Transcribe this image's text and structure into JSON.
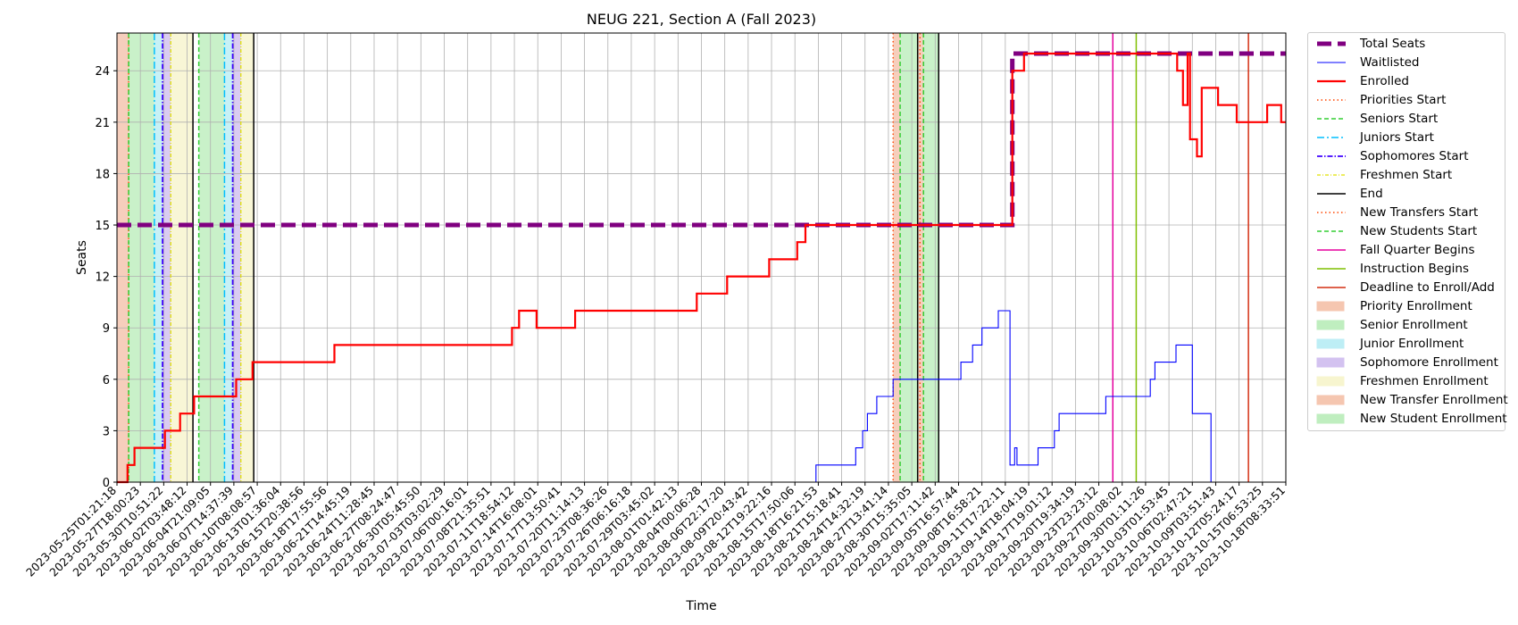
{
  "chart_data": {
    "type": "line",
    "title": "NEUG 221, Section A (Fall 2023)",
    "xlabel": "Time",
    "ylabel": "Seats",
    "ylim": [
      0,
      26.2
    ],
    "yticks": [
      0,
      3,
      6,
      9,
      12,
      15,
      18,
      21,
      24
    ],
    "grid": true,
    "legend_position": "outside-right",
    "x_tick_labels": [
      "2023-05-25T01:21:18",
      "2023-05-27T18:00:23",
      "2023-05-30T10:51:22",
      "2023-06-02T03:48:12",
      "2023-06-04T21:09:05",
      "2023-06-07T14:37:39",
      "2023-06-10T08:08:57",
      "2023-06-13T01:36:04",
      "2023-06-15T20:38:56",
      "2023-06-18T17:55:56",
      "2023-06-21T14:45:19",
      "2023-06-24T11:28:45",
      "2023-06-27T08:24:47",
      "2023-06-30T05:45:50",
      "2023-07-03T03:02:29",
      "2023-07-06T00:16:01",
      "2023-07-08T21:35:51",
      "2023-07-11T18:54:12",
      "2023-07-14T16:08:01",
      "2023-07-17T13:50:41",
      "2023-07-20T11:14:13",
      "2023-07-23T08:36:26",
      "2023-07-26T06:16:18",
      "2023-07-29T03:45:02",
      "2023-08-01T01:42:13",
      "2023-08-04T00:06:28",
      "2023-08-06T22:17:20",
      "2023-08-09T20:43:42",
      "2023-08-12T19:22:16",
      "2023-08-15T17:50:06",
      "2023-08-18T16:21:53",
      "2023-08-21T15:18:41",
      "2023-08-24T14:32:19",
      "2023-08-27T13:41:14",
      "2023-08-30T15:35:05",
      "2023-09-02T17:11:42",
      "2023-09-05T16:57:44",
      "2023-09-08T16:58:21",
      "2023-09-11T17:22:11",
      "2023-09-14T18:04:19",
      "2023-09-17T19:01:12",
      "2023-09-20T19:34:19",
      "2023-09-23T23:23:12",
      "2023-09-27T00:08:02",
      "2023-09-30T01:11:26",
      "2023-10-03T01:53:45",
      "2023-10-06T02:47:21",
      "2023-10-09T03:51:43",
      "2023-10-12T05:24:17",
      "2023-10-15T06:53:25",
      "2023-10-18T08:33:51"
    ],
    "series": [
      {
        "name": "Total Seats",
        "color": "#800080",
        "style": "dashed-thick",
        "x": [
          0,
          38.3,
          38.3,
          50
        ],
        "y": [
          15,
          15,
          25,
          25
        ]
      },
      {
        "name": "Enrolled",
        "color": "#ff0000",
        "style": "step",
        "x": [
          0,
          0.45,
          0.75,
          2.05,
          2.7,
          3.3,
          4.0,
          5.1,
          5.8,
          9.3,
          16.9,
          17.2,
          17.95,
          19.6,
          24.8,
          26.1,
          27.9,
          29.1,
          29.45,
          36.0,
          38.3,
          38.5,
          38.8,
          41.0,
          42.5,
          44.0,
          45.3,
          45.35,
          45.6,
          45.8,
          45.9,
          46.2,
          46.4,
          47.1,
          47.9,
          48.5,
          49.2,
          49.8,
          50
        ],
        "y": [
          0,
          1,
          2,
          3,
          4,
          5,
          5,
          6,
          7,
          8,
          9,
          10,
          9,
          10,
          11,
          12,
          13,
          14,
          15,
          15,
          24,
          24,
          25,
          25,
          25,
          25,
          25,
          24,
          22,
          25,
          20,
          19,
          23,
          22,
          21,
          21,
          22,
          21,
          21
        ]
      },
      {
        "name": "Waitlisted",
        "color": "#0000ff",
        "style": "step",
        "x": [
          0,
          29.9,
          31.6,
          31.9,
          32.1,
          32.5,
          33.2,
          33.5,
          34.3,
          35.0,
          35.25,
          35.9,
          36.1,
          36.6,
          37.0,
          37.7,
          38.0,
          38.2,
          38.4,
          38.5,
          39.1,
          39.4,
          40.1,
          40.3,
          41.1,
          41.5,
          42.3,
          44.2,
          44.4,
          44.7,
          45.3,
          46.0,
          46.8,
          50
        ],
        "y": [
          0,
          1,
          2,
          3,
          4,
          5,
          6,
          6,
          6,
          6,
          6,
          6,
          7,
          8,
          9,
          10,
          10,
          1,
          2,
          1,
          1,
          2,
          3,
          4,
          4,
          4,
          5,
          6,
          7,
          7,
          8,
          4,
          0,
          0
        ]
      }
    ],
    "markers": [
      {
        "name": "Priorities Start",
        "color": "#ff4500",
        "style": "dotted",
        "x": [
          0.5,
          33.2
        ]
      },
      {
        "name": "Seniors Start",
        "color": "#32cd32",
        "style": "dashed",
        "x": [
          0.5,
          3.5,
          33.5
        ]
      },
      {
        "name": "Juniors Start",
        "color": "#00bfff",
        "style": "dashdot",
        "x": [
          1.6,
          4.6
        ]
      },
      {
        "name": "Sophomores Start",
        "color": "#3f00ff",
        "style": "dashdot-dense",
        "x": [
          1.95,
          4.95
        ]
      },
      {
        "name": "Freshmen Start",
        "color": "#e0e000",
        "style": "dashdot-yellow",
        "x": [
          2.3,
          5.3
        ]
      },
      {
        "name": "End",
        "color": "#000000",
        "style": "solid",
        "x": [
          3.25,
          5.85,
          34.25,
          35.15
        ]
      },
      {
        "name": "New Transfers Start",
        "color": "#ff4500",
        "style": "dotted",
        "x": [
          34.35
        ]
      },
      {
        "name": "New Students Start",
        "color": "#32cd32",
        "style": "dashed",
        "x": [
          34.5
        ]
      },
      {
        "name": "Fall Quarter Begins",
        "color": "#e6009e",
        "style": "solid",
        "x": [
          42.6
        ]
      },
      {
        "name": "Instruction Begins",
        "color": "#7fbf00",
        "style": "solid",
        "x": [
          43.6
        ]
      },
      {
        "name": "Deadline to Enroll/Add",
        "color": "#d42e12",
        "style": "solid",
        "x": [
          48.4
        ]
      }
    ],
    "bands": [
      {
        "name": "Priority Enrollment",
        "color": "#f5c6b0",
        "ranges": [
          [
            0.0,
            0.5
          ],
          [
            33.2,
            33.5
          ]
        ]
      },
      {
        "name": "Senior Enrollment",
        "color": "#bfeebf",
        "ranges": [
          [
            0.5,
            1.6
          ],
          [
            3.5,
            4.6
          ],
          [
            33.5,
            34.25
          ]
        ]
      },
      {
        "name": "Junior Enrollment",
        "color": "#bdeef5",
        "ranges": [
          [
            1.6,
            1.95
          ],
          [
            4.6,
            4.95
          ]
        ]
      },
      {
        "name": "Sophomore Enrollment",
        "color": "#d3c2f0",
        "ranges": [
          [
            1.95,
            2.3
          ],
          [
            4.95,
            5.3
          ]
        ]
      },
      {
        "name": "Freshmen Enrollment",
        "color": "#f7f5cf",
        "ranges": [
          [
            2.3,
            3.25
          ],
          [
            5.3,
            5.85
          ]
        ]
      },
      {
        "name": "New Transfer Enrollment",
        "color": "#f5c6b0",
        "ranges": [
          [
            34.25,
            34.5
          ]
        ]
      },
      {
        "name": "New Student Enrollment",
        "color": "#bfeebf",
        "ranges": [
          [
            34.5,
            35.15
          ]
        ]
      }
    ],
    "legend": [
      {
        "label": "Total Seats",
        "kind": "line",
        "color": "#800080",
        "style": "dashed-thick"
      },
      {
        "label": "Waitlisted",
        "kind": "line",
        "color": "#0000ff",
        "style": "thin"
      },
      {
        "label": "Enrolled",
        "kind": "line",
        "color": "#ff0000",
        "style": "medium"
      },
      {
        "label": "Priorities Start",
        "kind": "line",
        "color": "#ff4500",
        "style": "dotted"
      },
      {
        "label": "Seniors Start",
        "kind": "line",
        "color": "#32cd32",
        "style": "dashed"
      },
      {
        "label": "Juniors Start",
        "kind": "line",
        "color": "#00bfff",
        "style": "dashdot"
      },
      {
        "label": "Sophomores Start",
        "kind": "line",
        "color": "#3f00ff",
        "style": "dashdot-dense"
      },
      {
        "label": "Freshmen Start",
        "kind": "line",
        "color": "#e0e000",
        "style": "dashdot-yellow"
      },
      {
        "label": "End",
        "kind": "line",
        "color": "#000000",
        "style": "solid"
      },
      {
        "label": "New Transfers Start",
        "kind": "line",
        "color": "#ff4500",
        "style": "dotted"
      },
      {
        "label": "New Students Start",
        "kind": "line",
        "color": "#32cd32",
        "style": "dashed"
      },
      {
        "label": "Fall Quarter Begins",
        "kind": "line",
        "color": "#e6009e",
        "style": "solid"
      },
      {
        "label": "Instruction Begins",
        "kind": "line",
        "color": "#7fbf00",
        "style": "solid"
      },
      {
        "label": "Deadline to Enroll/Add",
        "kind": "line",
        "color": "#d42e12",
        "style": "solid"
      },
      {
        "label": "Priority Enrollment",
        "kind": "patch",
        "color": "#f5c6b0"
      },
      {
        "label": "Senior Enrollment",
        "kind": "patch",
        "color": "#bfeebf"
      },
      {
        "label": "Junior Enrollment",
        "kind": "patch",
        "color": "#bdeef5"
      },
      {
        "label": "Sophomore Enrollment",
        "kind": "patch",
        "color": "#d3c2f0"
      },
      {
        "label": "Freshmen Enrollment",
        "kind": "patch",
        "color": "#f7f5cf"
      },
      {
        "label": "New Transfer Enrollment",
        "kind": "patch",
        "color": "#f5c6b0"
      },
      {
        "label": "New Student Enrollment",
        "kind": "patch",
        "color": "#bfeebf"
      }
    ]
  }
}
